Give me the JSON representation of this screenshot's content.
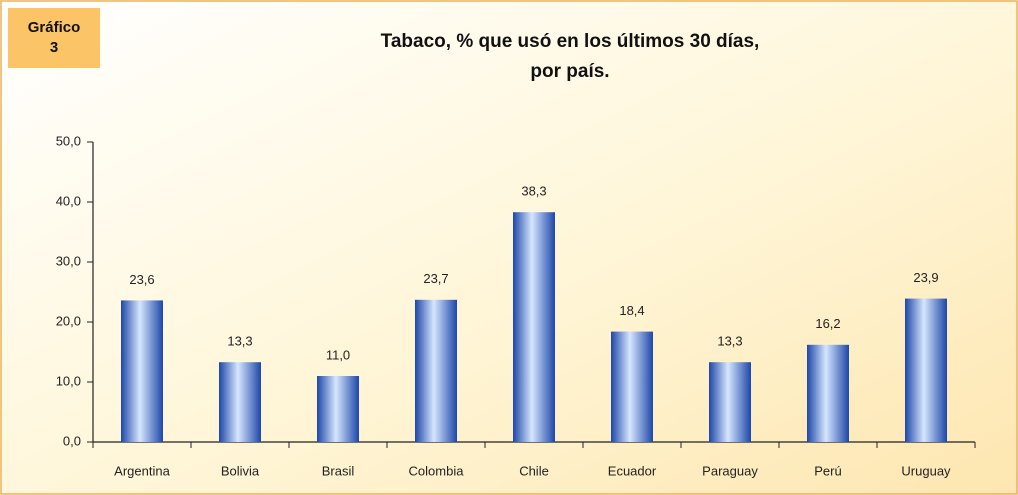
{
  "chart_data": {
    "type": "bar",
    "badge": [
      "Gráfico",
      "3"
    ],
    "title": [
      "Tabaco, % que usó en los últimos 30 días,",
      "por país."
    ],
    "categories": [
      "Argentina",
      "Bolivia",
      "Brasil",
      "Colombia",
      "Chile",
      "Ecuador",
      "Paraguay",
      "Perú",
      "Uruguay"
    ],
    "values": [
      23.6,
      13.3,
      11.0,
      23.7,
      38.3,
      18.4,
      13.3,
      16.2,
      23.9
    ],
    "value_labels": [
      "23,6",
      "13,3",
      "11,0",
      "23,7",
      "38,3",
      "18,4",
      "13,3",
      "16,2",
      "23,9"
    ],
    "color": "#1d47a8",
    "ylim": [
      0,
      50
    ],
    "yticks": [
      {
        "value": 0,
        "label": "0,0"
      },
      {
        "value": 10,
        "label": "10,0"
      },
      {
        "value": 20,
        "label": "20,0"
      },
      {
        "value": 30,
        "label": "30,0"
      },
      {
        "value": 40,
        "label": "40,0"
      },
      {
        "value": 50,
        "label": "50,0"
      }
    ],
    "grid": false
  }
}
